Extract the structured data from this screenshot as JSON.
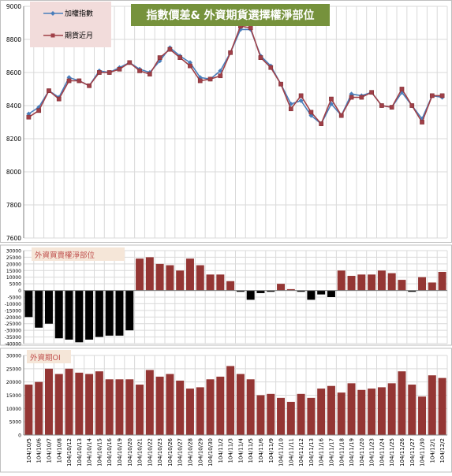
{
  "colors": {
    "index_line": "#4A7EBB",
    "futures_line": "#A04048",
    "bar_positive": "#943634",
    "bar_negative": "#000000",
    "grid": "#D9D9D9",
    "title_bg": "#76923C",
    "title_text": "#FFFFFF",
    "legend_bg": "#F2DCDB",
    "sub_label_bg": "#F5E6D8",
    "sub_label_text": "#C0504D",
    "panel_border": "#BFBFBF",
    "axis_text": "#000000"
  },
  "chart_data": [
    {
      "type": "line",
      "title": "指數價差& 外資期貨選擇權淨部位",
      "x": [
        "104/10/5",
        "104/10/6",
        "104/10/7",
        "104/10/8",
        "104/10/12",
        "104/10/13",
        "104/10/14",
        "104/10/15",
        "104/10/16",
        "104/10/19",
        "104/10/20",
        "104/10/21",
        "104/10/22",
        "104/10/23",
        "104/10/26",
        "104/10/27",
        "104/10/28",
        "104/10/29",
        "104/10/30",
        "104/11/2",
        "104/11/3",
        "104/11/4",
        "104/11/5",
        "104/11/6",
        "104/11/9",
        "104/11/10",
        "104/11/11",
        "104/11/12",
        "104/11/13",
        "104/11/16",
        "104/11/17",
        "104/11/18",
        "104/11/19",
        "104/11/20",
        "104/11/23",
        "104/11/24",
        "104/11/25",
        "104/11/26",
        "104/11/27",
        "104/11/30",
        "104/12/1",
        "104/12/2"
      ],
      "series": [
        {
          "name": "加權指數",
          "values": [
            8350,
            8390,
            8490,
            8450,
            8570,
            8550,
            8520,
            8610,
            8600,
            8630,
            8660,
            8620,
            8600,
            8670,
            8750,
            8700,
            8660,
            8570,
            8560,
            8610,
            8720,
            8860,
            8860,
            8700,
            8640,
            8530,
            8410,
            8430,
            8340,
            8290,
            8410,
            8340,
            8470,
            8460,
            8480,
            8400,
            8390,
            8480,
            8400,
            8320,
            8460,
            8450
          ]
        },
        {
          "name": "期貨近月",
          "values": [
            8330,
            8370,
            8490,
            8440,
            8550,
            8550,
            8520,
            8600,
            8600,
            8620,
            8660,
            8610,
            8590,
            8690,
            8740,
            8690,
            8640,
            8550,
            8560,
            8580,
            8720,
            8880,
            8870,
            8690,
            8630,
            8530,
            8380,
            8460,
            8360,
            8290,
            8440,
            8340,
            8450,
            8450,
            8480,
            8400,
            8390,
            8500,
            8400,
            8300,
            8460,
            8460
          ]
        }
      ],
      "ylim": [
        7600,
        9000
      ],
      "yticks": [
        7600,
        7800,
        8000,
        8200,
        8400,
        8600,
        8800,
        9000
      ],
      "grid": true,
      "legend": "top-left"
    },
    {
      "type": "bar",
      "label": "外資買賣權淨部位",
      "x": [
        "104/10/5",
        "104/10/6",
        "104/10/7",
        "104/10/8",
        "104/10/12",
        "104/10/13",
        "104/10/14",
        "104/10/15",
        "104/10/16",
        "104/10/19",
        "104/10/20",
        "104/10/21",
        "104/10/22",
        "104/10/23",
        "104/10/26",
        "104/10/27",
        "104/10/28",
        "104/10/29",
        "104/10/30",
        "104/11/2",
        "104/11/3",
        "104/11/4",
        "104/11/5",
        "104/11/6",
        "104/11/9",
        "104/11/10",
        "104/11/11",
        "104/11/12",
        "104/11/13",
        "104/11/16",
        "104/11/17",
        "104/11/18",
        "104/11/19",
        "104/11/20",
        "104/11/23",
        "104/11/24",
        "104/11/25",
        "104/11/26",
        "104/11/27",
        "104/11/30",
        "104/12/1",
        "104/12/2"
      ],
      "values": [
        -20000,
        -28000,
        -25000,
        -36000,
        -37000,
        -39000,
        -37000,
        -35000,
        -34000,
        -34000,
        -30000,
        24000,
        25000,
        20000,
        19000,
        15000,
        24000,
        19000,
        12000,
        12000,
        7000,
        -1000,
        -7000,
        -2000,
        -1000,
        5000,
        1000,
        -1000,
        -7000,
        -3000,
        -5000,
        15000,
        11000,
        12000,
        12000,
        15000,
        13000,
        8000,
        -1000,
        10000,
        6000,
        14000
      ],
      "ylim": [
        -40000,
        30000
      ],
      "yticks": [
        -40000,
        -35000,
        -30000,
        -25000,
        -20000,
        -15000,
        -10000,
        -5000,
        0,
        5000,
        10000,
        15000,
        20000,
        25000,
        30000
      ],
      "grid": true
    },
    {
      "type": "bar",
      "label": "外資期OI",
      "x": [
        "104/10/5",
        "104/10/6",
        "104/10/7",
        "104/10/8",
        "104/10/12",
        "104/10/13",
        "104/10/14",
        "104/10/15",
        "104/10/16",
        "104/10/19",
        "104/10/20",
        "104/10/21",
        "104/10/22",
        "104/10/23",
        "104/10/26",
        "104/10/27",
        "104/10/28",
        "104/10/29",
        "104/10/30",
        "104/11/2",
        "104/11/3",
        "104/11/4",
        "104/11/5",
        "104/11/6",
        "104/11/9",
        "104/11/10",
        "104/11/11",
        "104/11/12",
        "104/11/13",
        "104/11/16",
        "104/11/17",
        "104/11/18",
        "104/11/19",
        "104/11/20",
        "104/11/23",
        "104/11/24",
        "104/11/25",
        "104/11/26",
        "104/11/27",
        "104/11/30",
        "104/12/1",
        "104/12/2"
      ],
      "values": [
        19000,
        20000,
        25000,
        23000,
        25000,
        23500,
        23000,
        24000,
        21000,
        21000,
        21000,
        19000,
        24500,
        22000,
        23000,
        20500,
        17500,
        18000,
        21000,
        22000,
        26000,
        23000,
        21000,
        15000,
        15500,
        14000,
        12500,
        15500,
        14000,
        17500,
        18500,
        16000,
        19500,
        17000,
        17500,
        18000,
        19500,
        24000,
        19000,
        14500,
        22500,
        21500
      ],
      "ylim": [
        0,
        30000
      ],
      "yticks": [
        0,
        5000,
        10000,
        15000,
        20000,
        25000,
        30000
      ],
      "grid": true
    }
  ]
}
